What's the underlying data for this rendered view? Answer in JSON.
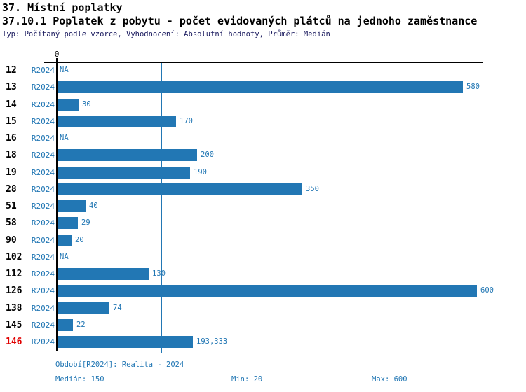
{
  "header": {
    "title": "37. Místní poplatky",
    "subtitle": "37.10.1 Poplatek z pobytu - počet evidovaných plátců na jednoho zaměstnance",
    "meta": "Typ: Počítaný podle vzorce, Vyhodnocení: Absolutní hodnoty, Průměr: Medián"
  },
  "chart_data": {
    "type": "bar",
    "orientation": "horizontal",
    "title": "37.10.1 Poplatek z pobytu - počet evidovaných plátců na jednoho zaměstnance",
    "categories": [
      "12",
      "13",
      "14",
      "15",
      "16",
      "18",
      "19",
      "28",
      "51",
      "58",
      "90",
      "102",
      "112",
      "126",
      "138",
      "145",
      "146"
    ],
    "series": [
      {
        "name": "R2024",
        "values": [
          null,
          580,
          30,
          170,
          null,
          200,
          190,
          350,
          40,
          29,
          20,
          null,
          130,
          600,
          74,
          22,
          193.333
        ]
      }
    ],
    "value_labels": [
      "NA",
      "580",
      "30",
      "170",
      "NA",
      "200",
      "190",
      "350",
      "40",
      "29",
      "20",
      "NA",
      "130",
      "600",
      "74",
      "22",
      "193,333"
    ],
    "highlighted_category": "146",
    "axis_zero_label": "0",
    "xlim": [
      0,
      610
    ],
    "median_line": 150,
    "grid": false,
    "legend": null,
    "stats": {
      "median": 150,
      "min": 20,
      "max": 600
    }
  },
  "footer": {
    "period_line": "Období[R2024]: Realita - 2024",
    "median": "Medián: 150",
    "min": "Min: 20",
    "max": "Max: 600"
  },
  "colors": {
    "bar": "#2277B4",
    "value_text": "#2277B4",
    "highlight_row": "#E00000",
    "meta_text": "#1A1A5E",
    "axis": "#000000"
  }
}
